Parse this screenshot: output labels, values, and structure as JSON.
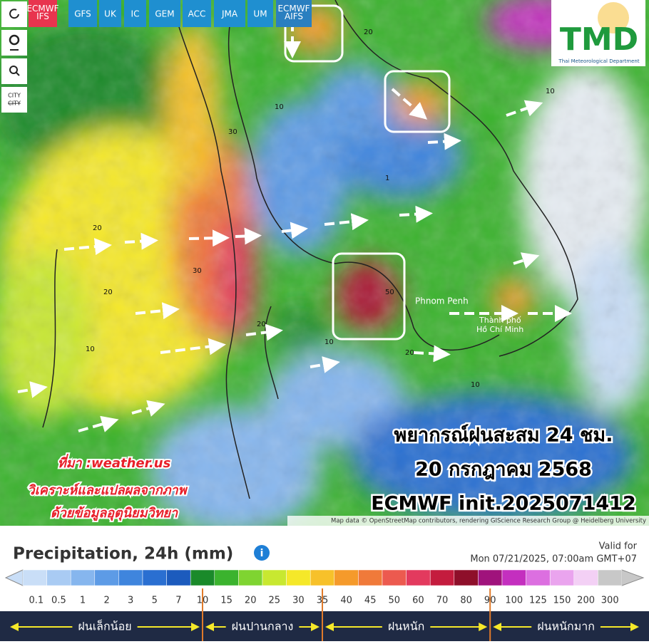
{
  "toolbar": {
    "models": [
      "ECMWF IFS",
      "GFS",
      "UK",
      "IC",
      "GEM",
      "ACC",
      "JMA",
      "UM",
      "ECMWF AIFS"
    ],
    "city": "CITY"
  },
  "logo": {
    "name": "TMD",
    "subtitle": "Thai Meteorological Department"
  },
  "overlay": {
    "title": "พยากรณ์ฝนสะสม 24 ชม.",
    "date": "20 กรกฎาคม 2568",
    "run": "ECMWF init.2025071412"
  },
  "credit": {
    "source": "ที่มา :weather.us",
    "line1": "วิเคราะห์และแปลผลจากภาพ",
    "line2": "ด้วยข้อมูลอุตุนิยมวิทยา"
  },
  "places": [
    "Phnom Penh",
    "Thành phố",
    "Hồ Chí Minh"
  ],
  "contours": [
    "20",
    "30",
    "30",
    "20",
    "10",
    "10",
    "20",
    "10",
    "50",
    "10",
    "20",
    "10",
    "20",
    "10",
    "1"
  ],
  "attribution": "Map data © OpenStreetMap contributors, rendering GIScience Research Group @ Heidelberg University",
  "legend": {
    "title": "Precipitation, 24h (mm)",
    "valid_label": "Valid for",
    "valid_time": "Mon 07/21/2025, 07:00am GMT+07",
    "steps": [
      {
        "label": "0.1",
        "color": "#c9def7"
      },
      {
        "label": "0.5",
        "color": "#a9cbf3"
      },
      {
        "label": "1",
        "color": "#86b6ee"
      },
      {
        "label": "2",
        "color": "#5d9be6"
      },
      {
        "label": "3",
        "color": "#3f85dd"
      },
      {
        "label": "5",
        "color": "#2a6fd1"
      },
      {
        "label": "7",
        "color": "#1c5bbd"
      },
      {
        "label": "10",
        "color": "#1a8a2a"
      },
      {
        "label": "15",
        "color": "#3bb32e"
      },
      {
        "label": "20",
        "color": "#7fd431"
      },
      {
        "label": "25",
        "color": "#c8e830"
      },
      {
        "label": "30",
        "color": "#f5e829"
      },
      {
        "label": "35",
        "color": "#f7c12a"
      },
      {
        "label": "40",
        "color": "#f59a2b"
      },
      {
        "label": "45",
        "color": "#f07a3a"
      },
      {
        "label": "50",
        "color": "#ec5a4f"
      },
      {
        "label": "60",
        "color": "#e33a5e"
      },
      {
        "label": "70",
        "color": "#c41c3e"
      },
      {
        "label": "80",
        "color": "#8e0f2a"
      },
      {
        "label": "90",
        "color": "#a0137c"
      },
      {
        "label": "100",
        "color": "#c42fbf"
      },
      {
        "label": "125",
        "color": "#dc6fe0"
      },
      {
        "label": "150",
        "color": "#eaa4ee"
      },
      {
        "label": "200",
        "color": "#f3d0f5"
      },
      {
        "label": "300",
        "color": "#c8c8c8"
      }
    ],
    "classes": [
      "ฝนเล็กน้อย",
      "ฝนปานกลาง",
      "ฝนหนัก",
      "ฝนหนักมาก"
    ]
  }
}
